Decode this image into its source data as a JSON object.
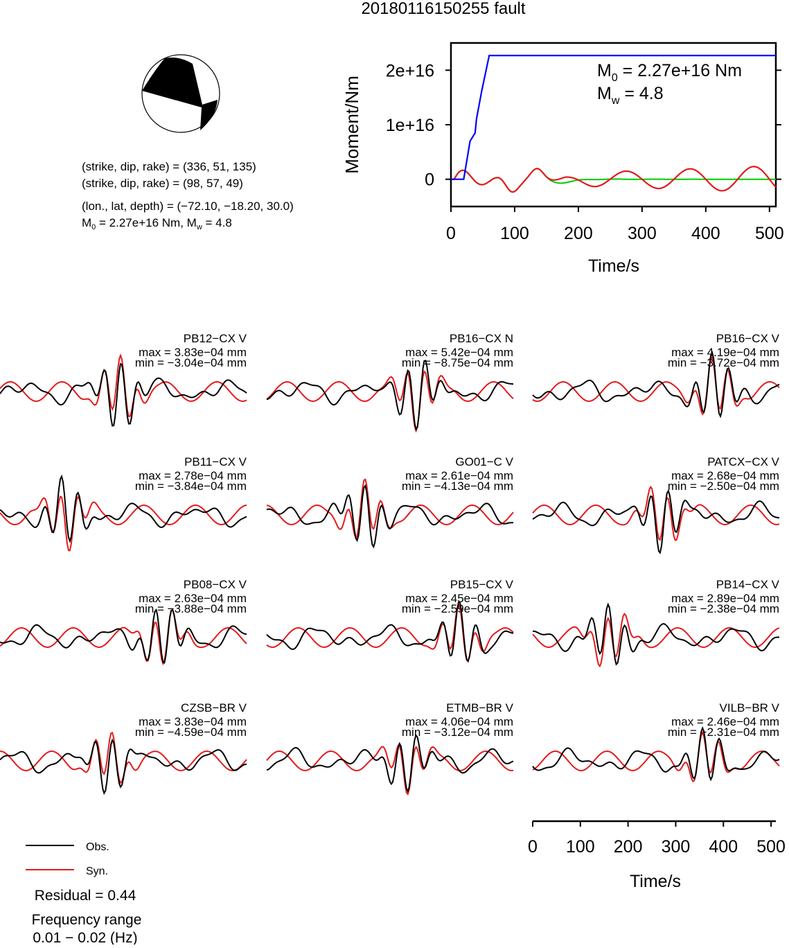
{
  "title": "20180116150255 fault",
  "focal": {
    "line1": "(strike, dip, rake) = (336, 51, 135)",
    "line2": "(strike, dip, rake) = (98, 57, 49)",
    "line3": "(lon., lat, depth) = (−72.10, −18.20, 30.0)",
    "m0_label": "M",
    "m0_sub": "0",
    "m0_value": " = 2.27e+16 Nm, M",
    "mw_sub": "w",
    "mw_value": " = 4.8"
  },
  "colors": {
    "obs": "#000000",
    "syn": "#e41a1c",
    "moment": "#0000ff",
    "stf": "#00cc00"
  },
  "stf_chart": {
    "type": "line",
    "ylabel": "Moment/Nm",
    "xlabel": "Time/s",
    "xlim": [
      0,
      510
    ],
    "ylim": [
      -5000000000000000.0,
      2.5e+16
    ],
    "xticks": [
      0,
      100,
      200,
      300,
      400,
      500
    ],
    "xticklabels": [
      "0",
      "100",
      "200",
      "300",
      "400",
      "500"
    ],
    "yticks": [
      0,
      1e+16,
      2e+16
    ],
    "yticklabels": [
      "0",
      "1e+16",
      "2e+16"
    ],
    "ann_m0_main": "M",
    "ann_m0_sub": "0",
    "ann_m0_val": " = 2.27e+16 Nm",
    "ann_mw_main": "M",
    "ann_mw_sub": "w",
    "ann_mw_val": " = 4.8",
    "moment_x": [
      0,
      20,
      30,
      38,
      40,
      48,
      60,
      70,
      100,
      200,
      300,
      400,
      510
    ],
    "moment_y": [
      0,
      0,
      7000000000000000.0,
      8500000000000000.0,
      1.1e+16,
      1.6e+16,
      2.27e+16,
      2.27e+16,
      2.27e+16,
      2.27e+16,
      2.27e+16,
      2.27e+16,
      2.27e+16
    ]
  },
  "waveforms": {
    "xlim": [
      0,
      510
    ],
    "xticks": [
      0,
      100,
      200,
      300,
      400,
      500
    ],
    "xticklabels": [
      "0",
      "100",
      "200",
      "300",
      "400",
      "500"
    ],
    "xlabel": "Time/s",
    "stations": [
      {
        "name": "PB12−CX V",
        "max": "max = 3.83e−04 mm",
        "min": "min = −3.04e−04 mm"
      },
      {
        "name": "PB16−CX N",
        "max": "max = 5.42e−04 mm",
        "min": "min = −8.75e−04 mm"
      },
      {
        "name": "PB16−CX V",
        "max": "max = 4.19e−04 mm",
        "min": "min = −3.72e−04 mm"
      },
      {
        "name": "PB11−CX V",
        "max": "max = 2.78e−04 mm",
        "min": "min = −3.84e−04 mm"
      },
      {
        "name": "GO01−C V",
        "max": "max = 2.61e−04 mm",
        "min": "min = −4.13e−04 mm"
      },
      {
        "name": "PATCX−CX V",
        "max": "max = 2.68e−04 mm",
        "min": "min = −2.50e−04 mm"
      },
      {
        "name": "PB08−CX V",
        "max": "max = 2.63e−04 mm",
        "min": "min = −3.88e−04 mm"
      },
      {
        "name": "PB15−CX V",
        "max": "max = 2.45e−04 mm",
        "min": "min = −2.59e−04 mm"
      },
      {
        "name": "PB14−CX V",
        "max": "max = 2.89e−04 mm",
        "min": "min = −2.38e−04 mm"
      },
      {
        "name": "CZSB−BR V",
        "max": "max = 3.83e−04 mm",
        "min": "min = −4.59e−04 mm"
      },
      {
        "name": "ETMB−BR V",
        "max": "max = 4.06e−04 mm",
        "min": "min = −3.12e−04 mm"
      },
      {
        "name": "VILB−BR V",
        "max": "max = 2.46e−04 mm",
        "min": "min = −2.31e−04 mm"
      }
    ]
  },
  "legend": {
    "obs": "Obs.",
    "syn": "Syn."
  },
  "residual": "Residual = 0.44",
  "freq_label": "Frequency range",
  "freq_value": "0.01 − 0.02 (Hz)"
}
